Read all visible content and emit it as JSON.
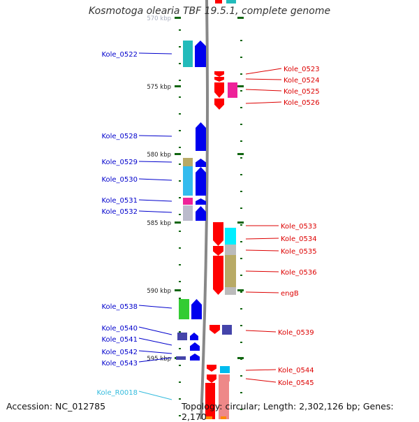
{
  "title": "Kosmotoga olearia TBF 19.5.1, complete genome",
  "footer": {
    "accession": "Accession: NC_012785",
    "summary": "Topology: circular; Length: 2,302,126 bp; Genes: 2,170"
  },
  "colors": {
    "left_label": "#0000cc",
    "right_label": "#dd0000",
    "rna_label": "#33bbdd",
    "tick": "#116611",
    "backbone": "#888888"
  },
  "scale": {
    "ticks": [
      {
        "label": "570 kbp"
      },
      {
        "label": "575 kbp"
      },
      {
        "label": "580 kbp"
      },
      {
        "label": "585 kbp"
      },
      {
        "label": "590 kbp"
      },
      {
        "label": "595 kbp"
      }
    ]
  },
  "left_genes": [
    {
      "label": "Kole_0522"
    },
    {
      "label": "Kole_0528"
    },
    {
      "label": "Kole_0529"
    },
    {
      "label": "Kole_0530"
    },
    {
      "label": "Kole_0531"
    },
    {
      "label": "Kole_0532"
    },
    {
      "label": "Kole_0538"
    },
    {
      "label": "Kole_0540"
    },
    {
      "label": "Kole_0541"
    },
    {
      "label": "Kole_0542"
    },
    {
      "label": "Kole_0543"
    },
    {
      "label": "Kole_R0018"
    }
  ],
  "right_genes": [
    {
      "label": "Kole_0523"
    },
    {
      "label": "Kole_0524"
    },
    {
      "label": "Kole_0525"
    },
    {
      "label": "Kole_0526"
    },
    {
      "label": "Kole_0533"
    },
    {
      "label": "Kole_0534"
    },
    {
      "label": "Kole_0535"
    },
    {
      "label": "Kole_0536"
    },
    {
      "label": "engB"
    },
    {
      "label": "Kole_0539"
    },
    {
      "label": "Kole_0544"
    },
    {
      "label": "Kole_0545"
    }
  ]
}
